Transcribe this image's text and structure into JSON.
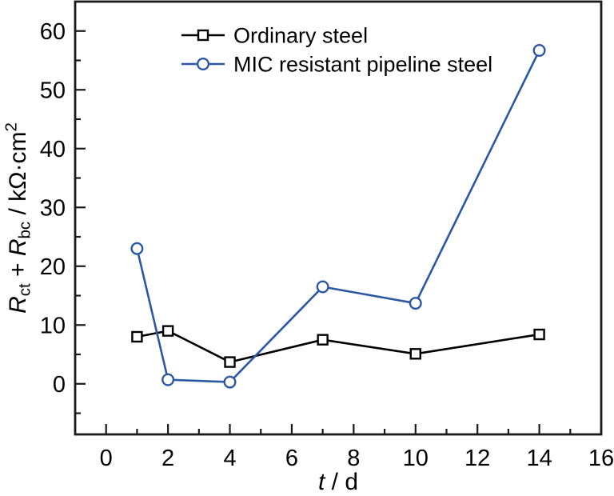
{
  "chart_data": {
    "type": "line",
    "title": "",
    "xlabel_parts": [
      {
        "text": "t",
        "style": "italic"
      },
      {
        "text": " / d",
        "style": "normal"
      }
    ],
    "ylabel_parts": [
      {
        "text": "R",
        "style": "italic"
      },
      {
        "text": "ct",
        "style": "sub"
      },
      {
        "text": " + ",
        "style": "normal"
      },
      {
        "text": "R",
        "style": "italic"
      },
      {
        "text": "bc",
        "style": "sub"
      },
      {
        "text": " / kΩ·cm",
        "style": "normal"
      },
      {
        "text": "2",
        "style": "sup"
      }
    ],
    "xlim": [
      -1,
      16
    ],
    "ylim": [
      -8.6,
      65
    ],
    "x_major_ticks": [
      0,
      2,
      4,
      6,
      8,
      10,
      12,
      14,
      16
    ],
    "x_minor_ticks": [
      1,
      3,
      5,
      7,
      9,
      11,
      13,
      15
    ],
    "y_major_ticks": [
      0,
      10,
      20,
      30,
      40,
      50,
      60
    ],
    "y_minor_ticks": [
      -5,
      5,
      15,
      25,
      35,
      45,
      55
    ],
    "x": [
      1,
      2,
      4,
      7,
      10,
      14
    ],
    "series": [
      {
        "name": "Ordinary steel",
        "marker": "square",
        "color": "#000000",
        "values": [
          8.0,
          9.0,
          3.7,
          7.5,
          5.1,
          8.4
        ]
      },
      {
        "name": "MIC resistant pipeline steel",
        "marker": "circle",
        "color": "#2b57a5",
        "values": [
          23.0,
          0.7,
          0.3,
          16.5,
          13.7,
          56.7
        ]
      }
    ],
    "legend_position": "top-center-inside",
    "grid": false,
    "background": "#ffffff",
    "ink_color": "#1a1a1a"
  }
}
